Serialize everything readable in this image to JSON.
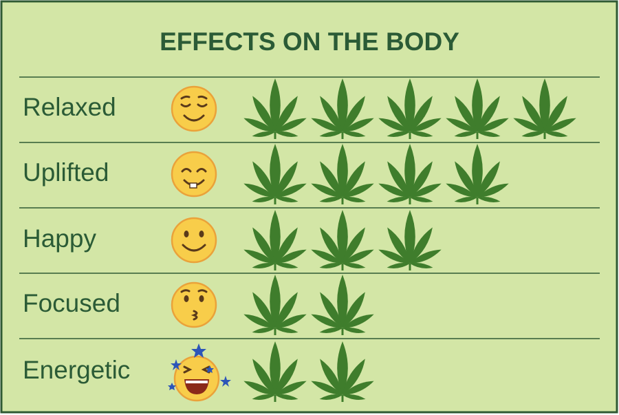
{
  "chart_data": {
    "type": "pictograph",
    "title": "EFFECTS ON THE BODY",
    "categories": [
      "Relaxed",
      "Uplifted",
      "Happy",
      "Focused",
      "Energetic"
    ],
    "values": [
      5,
      4,
      3,
      2,
      2
    ],
    "color": "#3f7d2c"
  }
}
